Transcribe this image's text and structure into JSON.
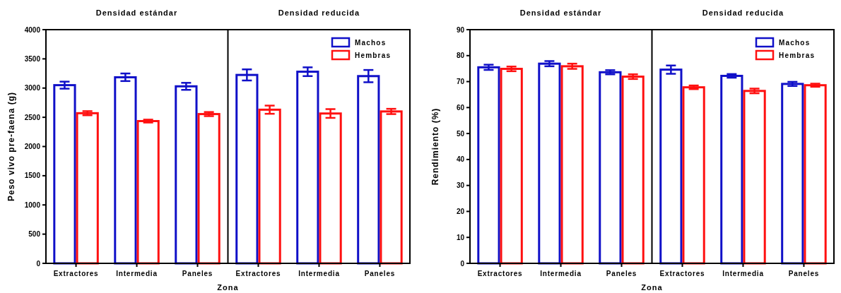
{
  "chart_data": [
    {
      "type": "bar",
      "ylabel": "Peso vivo pre-faena (g)",
      "xlabel": "Zona",
      "categories": [
        "Extractores",
        "Intermedia",
        "Paneles",
        "Extractores",
        "Intermedia",
        "Paneles"
      ],
      "annotations": [
        "Densidad estándar",
        "Densidad reducida"
      ],
      "series": [
        {
          "name": "Machos",
          "color": "#1010c8",
          "values": [
            3050,
            3185,
            3030,
            3225,
            3280,
            3205
          ],
          "errors": [
            60,
            65,
            60,
            95,
            75,
            105
          ]
        },
        {
          "name": "Hembras",
          "color": "#ff1010",
          "values": [
            2570,
            2435,
            2555,
            2630,
            2565,
            2600
          ],
          "errors": [
            35,
            25,
            35,
            70,
            75,
            45
          ]
        }
      ],
      "ylim": [
        0,
        4000
      ],
      "yticks": [
        0,
        500,
        1000,
        1500,
        2000,
        2500,
        3000,
        3500,
        4000
      ],
      "legend": "top right",
      "grid": false
    },
    {
      "type": "bar",
      "ylabel": "Rendimiento (%)",
      "xlabel": "Zona",
      "categories": [
        "Extractores",
        "Intermedia",
        "Paneles",
        "Extractores",
        "Intermedia",
        "Paneles"
      ],
      "annotations": [
        "Densidad estándar",
        "Densidad reducida"
      ],
      "series": [
        {
          "name": "Machos",
          "color": "#1010c8",
          "values": [
            75.5,
            76.9,
            73.6,
            74.6,
            72.2,
            69.1
          ],
          "errors": [
            1.0,
            1.0,
            0.8,
            1.6,
            0.7,
            0.8
          ]
        },
        {
          "name": "Hembras",
          "color": "#ff1010",
          "values": [
            74.9,
            75.9,
            71.9,
            67.8,
            66.4,
            68.6
          ],
          "errors": [
            0.9,
            1.0,
            0.9,
            0.7,
            0.9,
            0.6
          ]
        }
      ],
      "ylim": [
        0,
        90
      ],
      "yticks": [
        0,
        10,
        20,
        30,
        40,
        50,
        60,
        70,
        80,
        90
      ],
      "legend": "top right",
      "grid": false
    }
  ]
}
